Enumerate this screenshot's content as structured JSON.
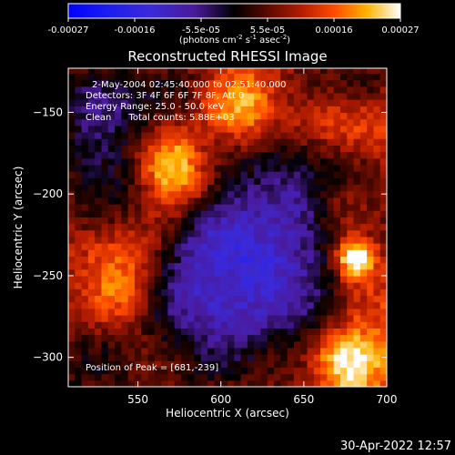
{
  "chart_data": {
    "type": "heatmap",
    "title": "Reconstructed RHESSI Image",
    "xlabel": "Heliocentric X (arcsec)",
    "ylabel": "Heliocentric Y (arcsec)",
    "xlim": [
      508,
      700
    ],
    "ylim": [
      -318,
      -123
    ],
    "x_ticks": [
      550,
      600,
      650,
      700
    ],
    "y_ticks": [
      -150,
      -200,
      -250,
      -300
    ],
    "colorbar": {
      "min": -0.00027,
      "max": 0.00027,
      "ticks": [
        "-0.00027",
        "-0.00016",
        "-5.5e-05",
        "5.5e-05",
        "0.00016",
        "0.00027"
      ],
      "label_main": "(photons cm",
      "label_sup1": "-2",
      "label_mid": " s",
      "label_sup2": "-1",
      "label_end": " asec",
      "label_sup3": "-2",
      "label_close": ")"
    },
    "annotations": {
      "time": "2-May-2004 02:45:40.000 to 02:51:40.000",
      "detectors": "Detectors: 3F 4F 6F 6F 7F 8F, Att 0",
      "energy": "Energy Range: 25.0 - 50.0 keV",
      "clean": "Clean      Total counts: 5.88E+03",
      "peak": "Position of Peak = [681,-239]"
    },
    "peak": {
      "x": 681,
      "y": -239
    },
    "hot_spots": [
      {
        "x": 568,
        "y": -175,
        "value": 0.00018
      },
      {
        "x": 575,
        "y": -195,
        "value": 0.00016
      },
      {
        "x": 618,
        "y": -137,
        "value": 0.00013
      },
      {
        "x": 600,
        "y": -148,
        "value": 0.00012
      },
      {
        "x": 660,
        "y": -155,
        "value": 0.00013
      },
      {
        "x": 690,
        "y": -160,
        "value": 0.00012
      },
      {
        "x": 675,
        "y": -210,
        "value": 0.00011
      },
      {
        "x": 681,
        "y": -239,
        "value": 0.00027
      },
      {
        "x": 688,
        "y": -265,
        "value": 0.00012
      },
      {
        "x": 672,
        "y": -300,
        "value": 0.00015
      },
      {
        "x": 685,
        "y": -305,
        "value": 0.00016
      },
      {
        "x": 525,
        "y": -235,
        "value": 0.0001
      },
      {
        "x": 530,
        "y": -270,
        "value": 0.00011
      },
      {
        "x": 545,
        "y": -255,
        "value": 0.00012
      },
      {
        "x": 553,
        "y": -225,
        "value": 9e-05
      },
      {
        "x": 560,
        "y": -300,
        "value": 7e-05
      },
      {
        "x": 630,
        "y": -295,
        "value": 6e-05
      },
      {
        "x": 620,
        "y": -160,
        "value": 8e-05
      }
    ],
    "cold_spots": [
      {
        "x": 600,
        "y": -225,
        "value": -0.00012
      },
      {
        "x": 625,
        "y": -245,
        "value": -0.00011
      },
      {
        "x": 580,
        "y": -260,
        "value": -0.0001
      },
      {
        "x": 645,
        "y": -210,
        "value": -9e-05
      },
      {
        "x": 520,
        "y": -150,
        "value": -8e-05
      },
      {
        "x": 610,
        "y": -280,
        "value": -9e-05
      },
      {
        "x": 640,
        "y": -270,
        "value": -8e-05
      }
    ]
  },
  "footer": {
    "timestamp": "30-Apr-2022 12:57"
  }
}
